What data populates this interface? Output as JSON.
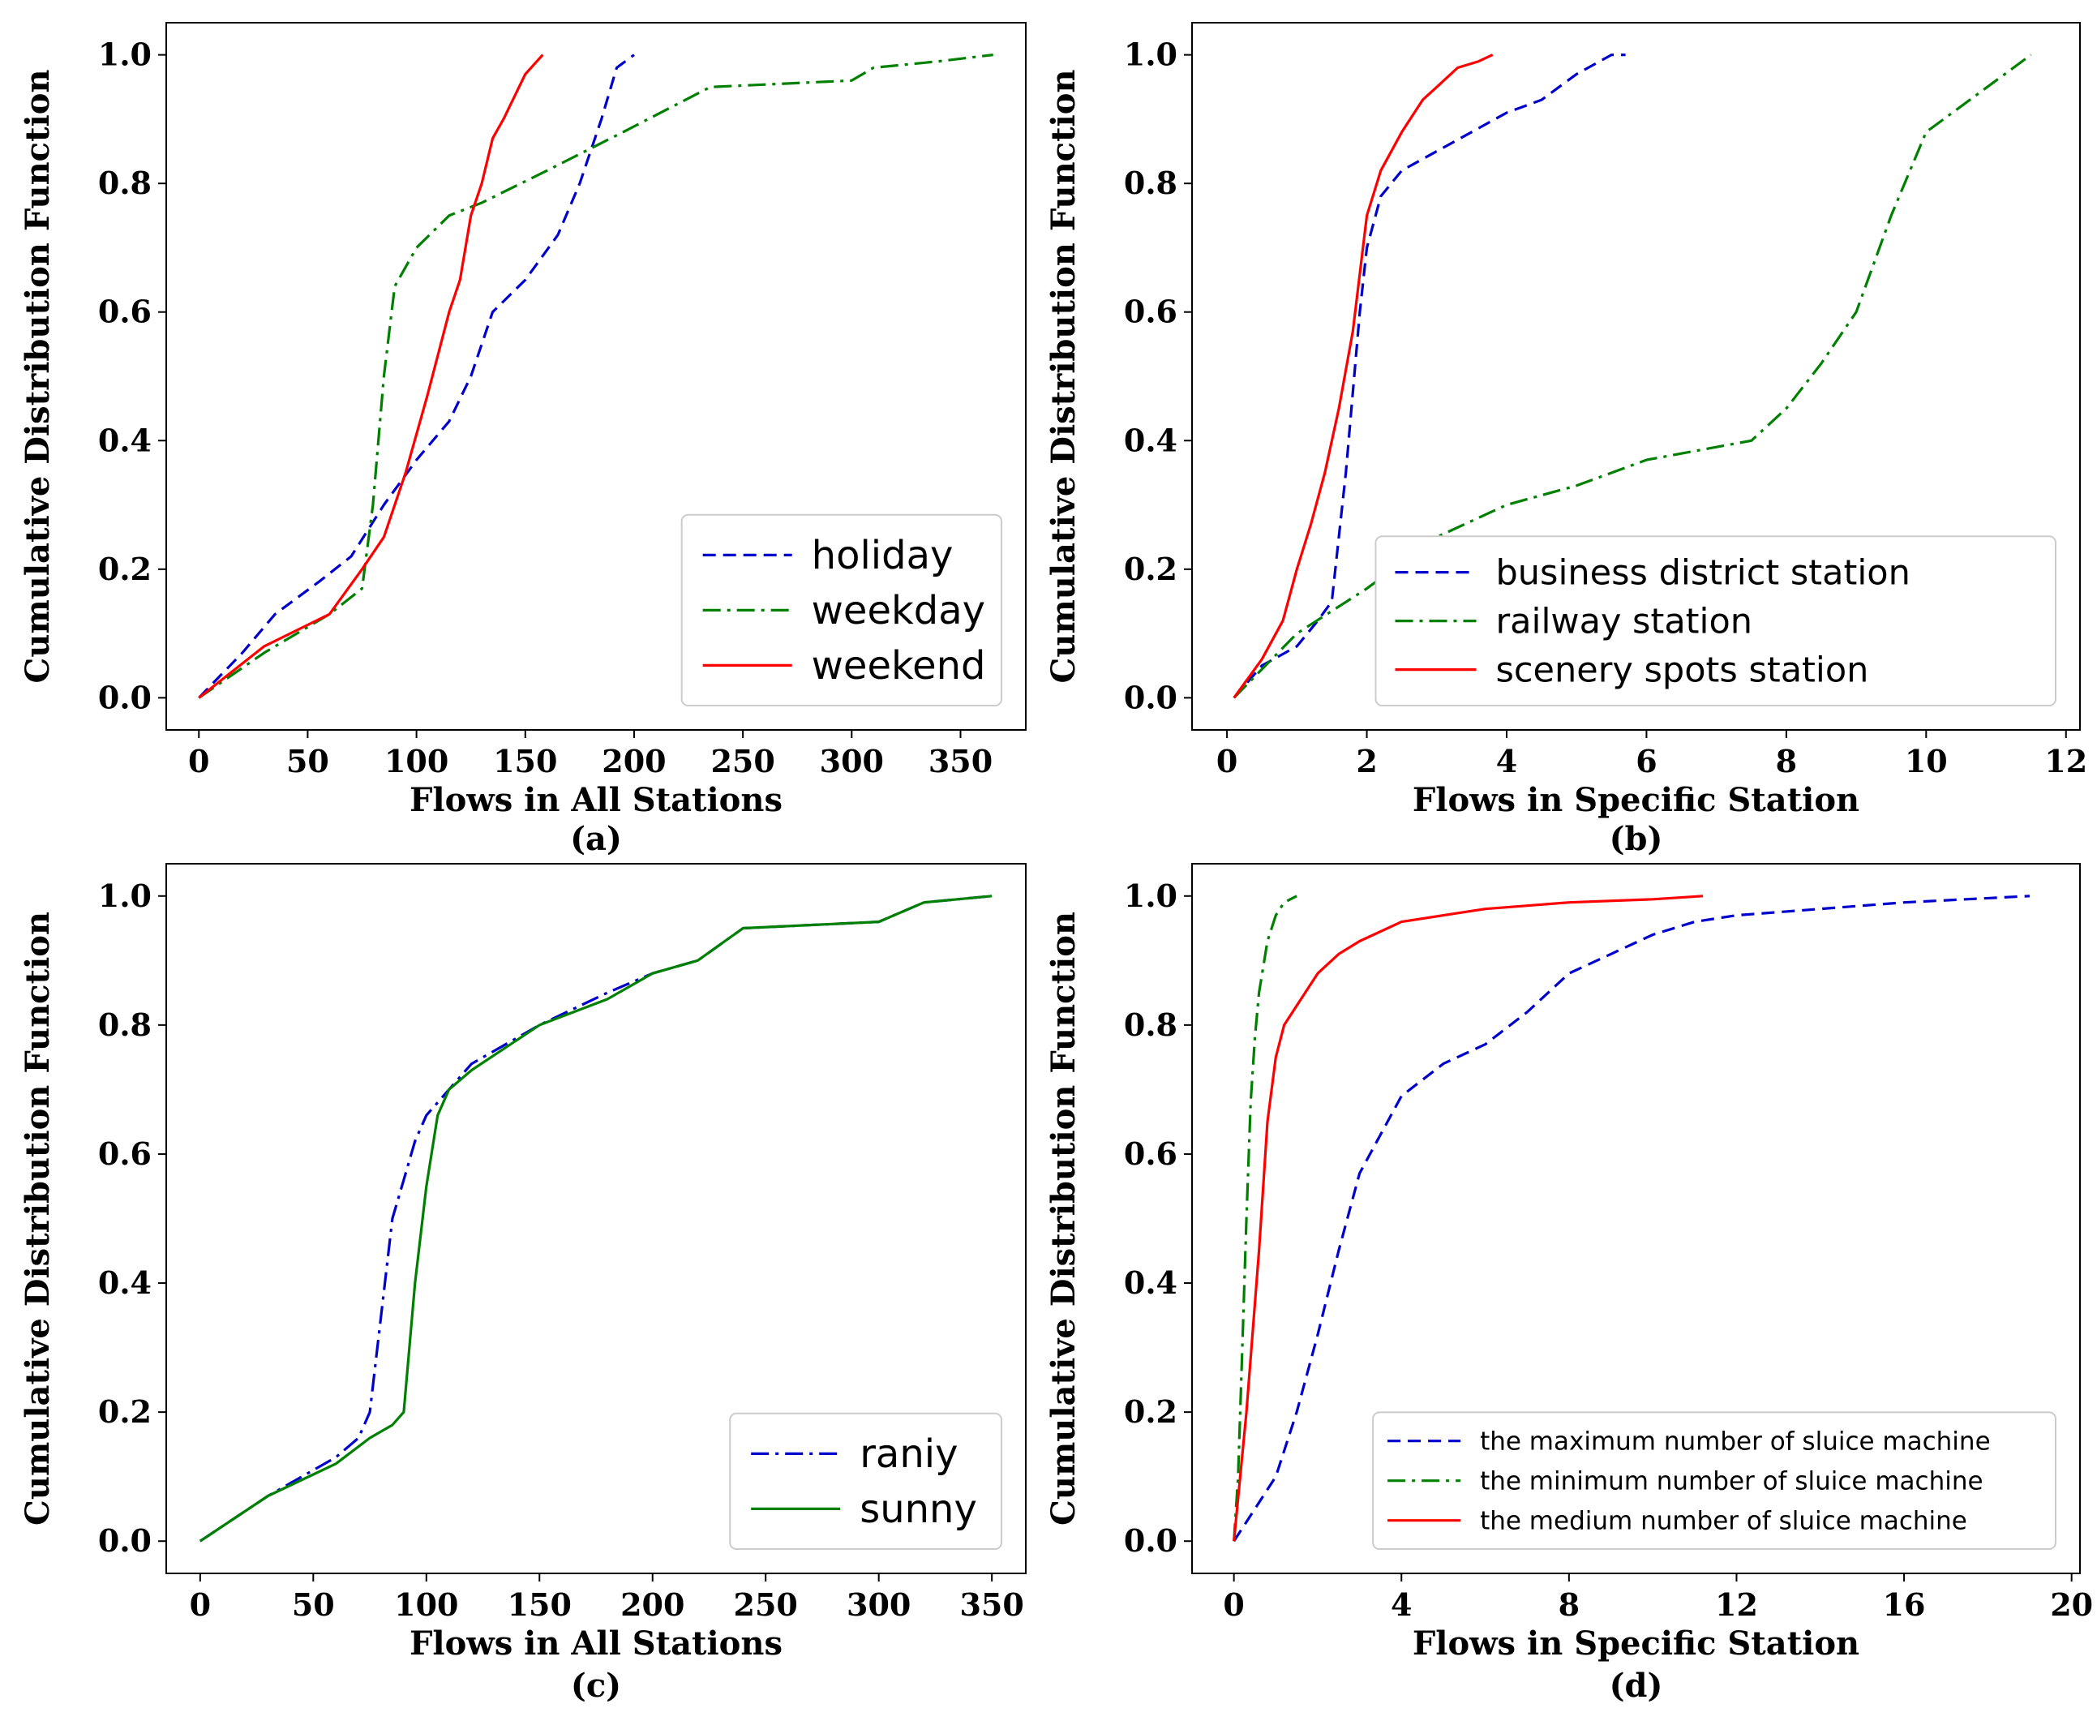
{
  "chart_data": [
    {
      "id": "a",
      "type": "line",
      "caption": "(a)",
      "xlabel": "Flows in All Stations",
      "ylabel": "Cumulative Distribution Function",
      "xlim": [
        -15,
        380
      ],
      "ylim": [
        -0.05,
        1.05
      ],
      "xticks": [
        0,
        50,
        100,
        150,
        200,
        250,
        300,
        350
      ],
      "xtick_labels": [
        "0",
        "50",
        "100",
        "150",
        "200",
        "250",
        "300",
        "350"
      ],
      "yticks": [
        0,
        0.2,
        0.4,
        0.6,
        0.8,
        1.0
      ],
      "ytick_labels": [
        "0.0",
        "0.2",
        "0.4",
        "0.6",
        "0.8",
        "1.0"
      ],
      "legend_position": "lower-right",
      "legend_font": "large",
      "series": [
        {
          "name": "holiday",
          "color": "#0000cc",
          "style": "dashed",
          "x": [
            0,
            20,
            35,
            55,
            70,
            85,
            100,
            115,
            125,
            135,
            150,
            165,
            175,
            185,
            192,
            200
          ],
          "y": [
            0.0,
            0.07,
            0.13,
            0.18,
            0.22,
            0.3,
            0.37,
            0.43,
            0.5,
            0.6,
            0.65,
            0.72,
            0.8,
            0.9,
            0.98,
            1.0
          ]
        },
        {
          "name": "weekday",
          "color": "#008000",
          "style": "dashdot",
          "x": [
            0,
            30,
            60,
            75,
            80,
            85,
            90,
            100,
            115,
            130,
            160,
            195,
            235,
            300,
            310,
            340,
            365
          ],
          "y": [
            0.0,
            0.07,
            0.13,
            0.17,
            0.3,
            0.5,
            0.64,
            0.7,
            0.75,
            0.77,
            0.82,
            0.88,
            0.95,
            0.96,
            0.98,
            0.99,
            1.0
          ]
        },
        {
          "name": "weekend",
          "color": "#ff0000",
          "style": "solid",
          "x": [
            0,
            30,
            60,
            75,
            85,
            95,
            105,
            115,
            120,
            125,
            130,
            135,
            140,
            150,
            158
          ],
          "y": [
            0.0,
            0.08,
            0.13,
            0.2,
            0.25,
            0.35,
            0.47,
            0.6,
            0.65,
            0.75,
            0.8,
            0.87,
            0.9,
            0.97,
            1.0
          ]
        }
      ]
    },
    {
      "id": "b",
      "type": "line",
      "caption": "(b)",
      "xlabel": "Flows in Specific Station",
      "ylabel": "Cumulative Distribution Function",
      "xlim": [
        -0.5,
        12.2
      ],
      "ylim": [
        -0.05,
        1.05
      ],
      "xticks": [
        0,
        2,
        4,
        6,
        8,
        10,
        12
      ],
      "xtick_labels": [
        "0",
        "2",
        "4",
        "6",
        "8",
        "10",
        "12"
      ],
      "yticks": [
        0,
        0.2,
        0.4,
        0.6,
        0.8,
        1.0
      ],
      "ytick_labels": [
        "0.0",
        "0.2",
        "0.4",
        "0.6",
        "0.8",
        "1.0"
      ],
      "legend_position": "lower-right",
      "legend_font": "medium",
      "series": [
        {
          "name": "business district station",
          "color": "#0000cc",
          "style": "dashed",
          "x": [
            0.1,
            0.5,
            1.0,
            1.3,
            1.5,
            1.7,
            1.9,
            2.0,
            2.2,
            2.5,
            3.0,
            3.5,
            4.0,
            4.5,
            5.0,
            5.5,
            5.7
          ],
          "y": [
            0.0,
            0.05,
            0.08,
            0.12,
            0.15,
            0.35,
            0.6,
            0.7,
            0.78,
            0.82,
            0.85,
            0.88,
            0.91,
            0.93,
            0.97,
            1.0,
            1.0
          ]
        },
        {
          "name": "railway station",
          "color": "#008000",
          "style": "dashdot",
          "x": [
            0.1,
            1,
            2,
            3,
            4,
            5,
            6,
            7,
            7.5,
            8,
            8.5,
            9,
            9.5,
            10,
            10.5,
            11,
            11.5
          ],
          "y": [
            0.0,
            0.1,
            0.17,
            0.25,
            0.3,
            0.33,
            0.37,
            0.39,
            0.4,
            0.45,
            0.52,
            0.6,
            0.75,
            0.88,
            0.92,
            0.96,
            1.0
          ]
        },
        {
          "name": "scenery spots station",
          "color": "#ff0000",
          "style": "solid",
          "x": [
            0.1,
            0.5,
            0.8,
            1.0,
            1.2,
            1.4,
            1.6,
            1.8,
            2.0,
            2.2,
            2.5,
            2.8,
            3.0,
            3.3,
            3.6,
            3.8
          ],
          "y": [
            0.0,
            0.06,
            0.12,
            0.2,
            0.27,
            0.35,
            0.45,
            0.57,
            0.75,
            0.82,
            0.88,
            0.93,
            0.95,
            0.98,
            0.99,
            1.0
          ]
        }
      ]
    },
    {
      "id": "c",
      "type": "line",
      "caption": "(c)",
      "xlabel": "Flows in All Stations",
      "ylabel": "Cumulative Distribution Function",
      "xlim": [
        -15,
        365
      ],
      "ylim": [
        -0.05,
        1.05
      ],
      "xticks": [
        0,
        50,
        100,
        150,
        200,
        250,
        300,
        350
      ],
      "xtick_labels": [
        "0",
        "50",
        "100",
        "150",
        "200",
        "250",
        "300",
        "350"
      ],
      "yticks": [
        0,
        0.2,
        0.4,
        0.6,
        0.8,
        1.0
      ],
      "ytick_labels": [
        "0.0",
        "0.2",
        "0.4",
        "0.6",
        "0.8",
        "1.0"
      ],
      "legend_position": "lower-right",
      "legend_font": "large",
      "series": [
        {
          "name": "raniy",
          "color": "#0000cc",
          "style": "dashdot",
          "x": [
            0,
            30,
            60,
            70,
            75,
            80,
            85,
            90,
            95,
            100,
            110,
            120,
            150,
            180,
            200,
            220,
            240,
            300,
            320,
            350
          ],
          "y": [
            0.0,
            0.07,
            0.13,
            0.16,
            0.2,
            0.35,
            0.5,
            0.56,
            0.62,
            0.66,
            0.7,
            0.74,
            0.8,
            0.85,
            0.88,
            0.9,
            0.95,
            0.96,
            0.99,
            1.0
          ]
        },
        {
          "name": "sunny",
          "color": "#008000",
          "style": "solid",
          "x": [
            0,
            30,
            60,
            75,
            85,
            90,
            95,
            100,
            105,
            110,
            120,
            150,
            180,
            200,
            220,
            240,
            300,
            320,
            350
          ],
          "y": [
            0.0,
            0.07,
            0.12,
            0.16,
            0.18,
            0.2,
            0.4,
            0.55,
            0.66,
            0.7,
            0.73,
            0.8,
            0.84,
            0.88,
            0.9,
            0.95,
            0.96,
            0.99,
            1.0
          ]
        }
      ]
    },
    {
      "id": "d",
      "type": "line",
      "caption": "(d)",
      "xlabel": "Flows in Specific Station",
      "ylabel": "Cumulative Distribution Function",
      "xlim": [
        -1,
        20.2
      ],
      "ylim": [
        -0.05,
        1.05
      ],
      "xticks": [
        0,
        4,
        8,
        12,
        16,
        20
      ],
      "xtick_labels": [
        "0",
        "4",
        "8",
        "12",
        "16",
        "20"
      ],
      "yticks": [
        0,
        0.2,
        0.4,
        0.6,
        0.8,
        1.0
      ],
      "ytick_labels": [
        "0.0",
        "0.2",
        "0.4",
        "0.6",
        "0.8",
        "1.0"
      ],
      "legend_position": "lower-right",
      "legend_font": "small",
      "series": [
        {
          "name": "the maximum number of sluice machine",
          "color": "#0000cc",
          "style": "dashed",
          "x": [
            0,
            0.5,
            1,
            1.5,
            2,
            2.5,
            3,
            3.5,
            4,
            5,
            6,
            7,
            8,
            9,
            10,
            11,
            12,
            14,
            16,
            19
          ],
          "y": [
            0.0,
            0.05,
            0.1,
            0.2,
            0.32,
            0.45,
            0.57,
            0.63,
            0.69,
            0.74,
            0.77,
            0.82,
            0.88,
            0.91,
            0.94,
            0.96,
            0.97,
            0.98,
            0.99,
            1.0
          ]
        },
        {
          "name": "the minimum number of sluice machine",
          "color": "#008000",
          "style": "dashdot",
          "x": [
            0,
            0.1,
            0.2,
            0.3,
            0.4,
            0.5,
            0.6,
            0.8,
            1.0,
            1.2,
            1.5
          ],
          "y": [
            0.0,
            0.1,
            0.3,
            0.5,
            0.68,
            0.78,
            0.85,
            0.93,
            0.97,
            0.99,
            1.0
          ]
        },
        {
          "name": "the medium number of sluice machine",
          "color": "#ff0000",
          "style": "solid",
          "x": [
            0,
            0.3,
            0.6,
            0.8,
            1.0,
            1.2,
            1.5,
            2.0,
            2.5,
            3.0,
            4.0,
            5.0,
            6.0,
            8.0,
            10.0,
            11.2
          ],
          "y": [
            0.0,
            0.2,
            0.45,
            0.65,
            0.75,
            0.8,
            0.83,
            0.88,
            0.91,
            0.93,
            0.96,
            0.97,
            0.98,
            0.99,
            0.995,
            1.0
          ]
        }
      ]
    }
  ]
}
